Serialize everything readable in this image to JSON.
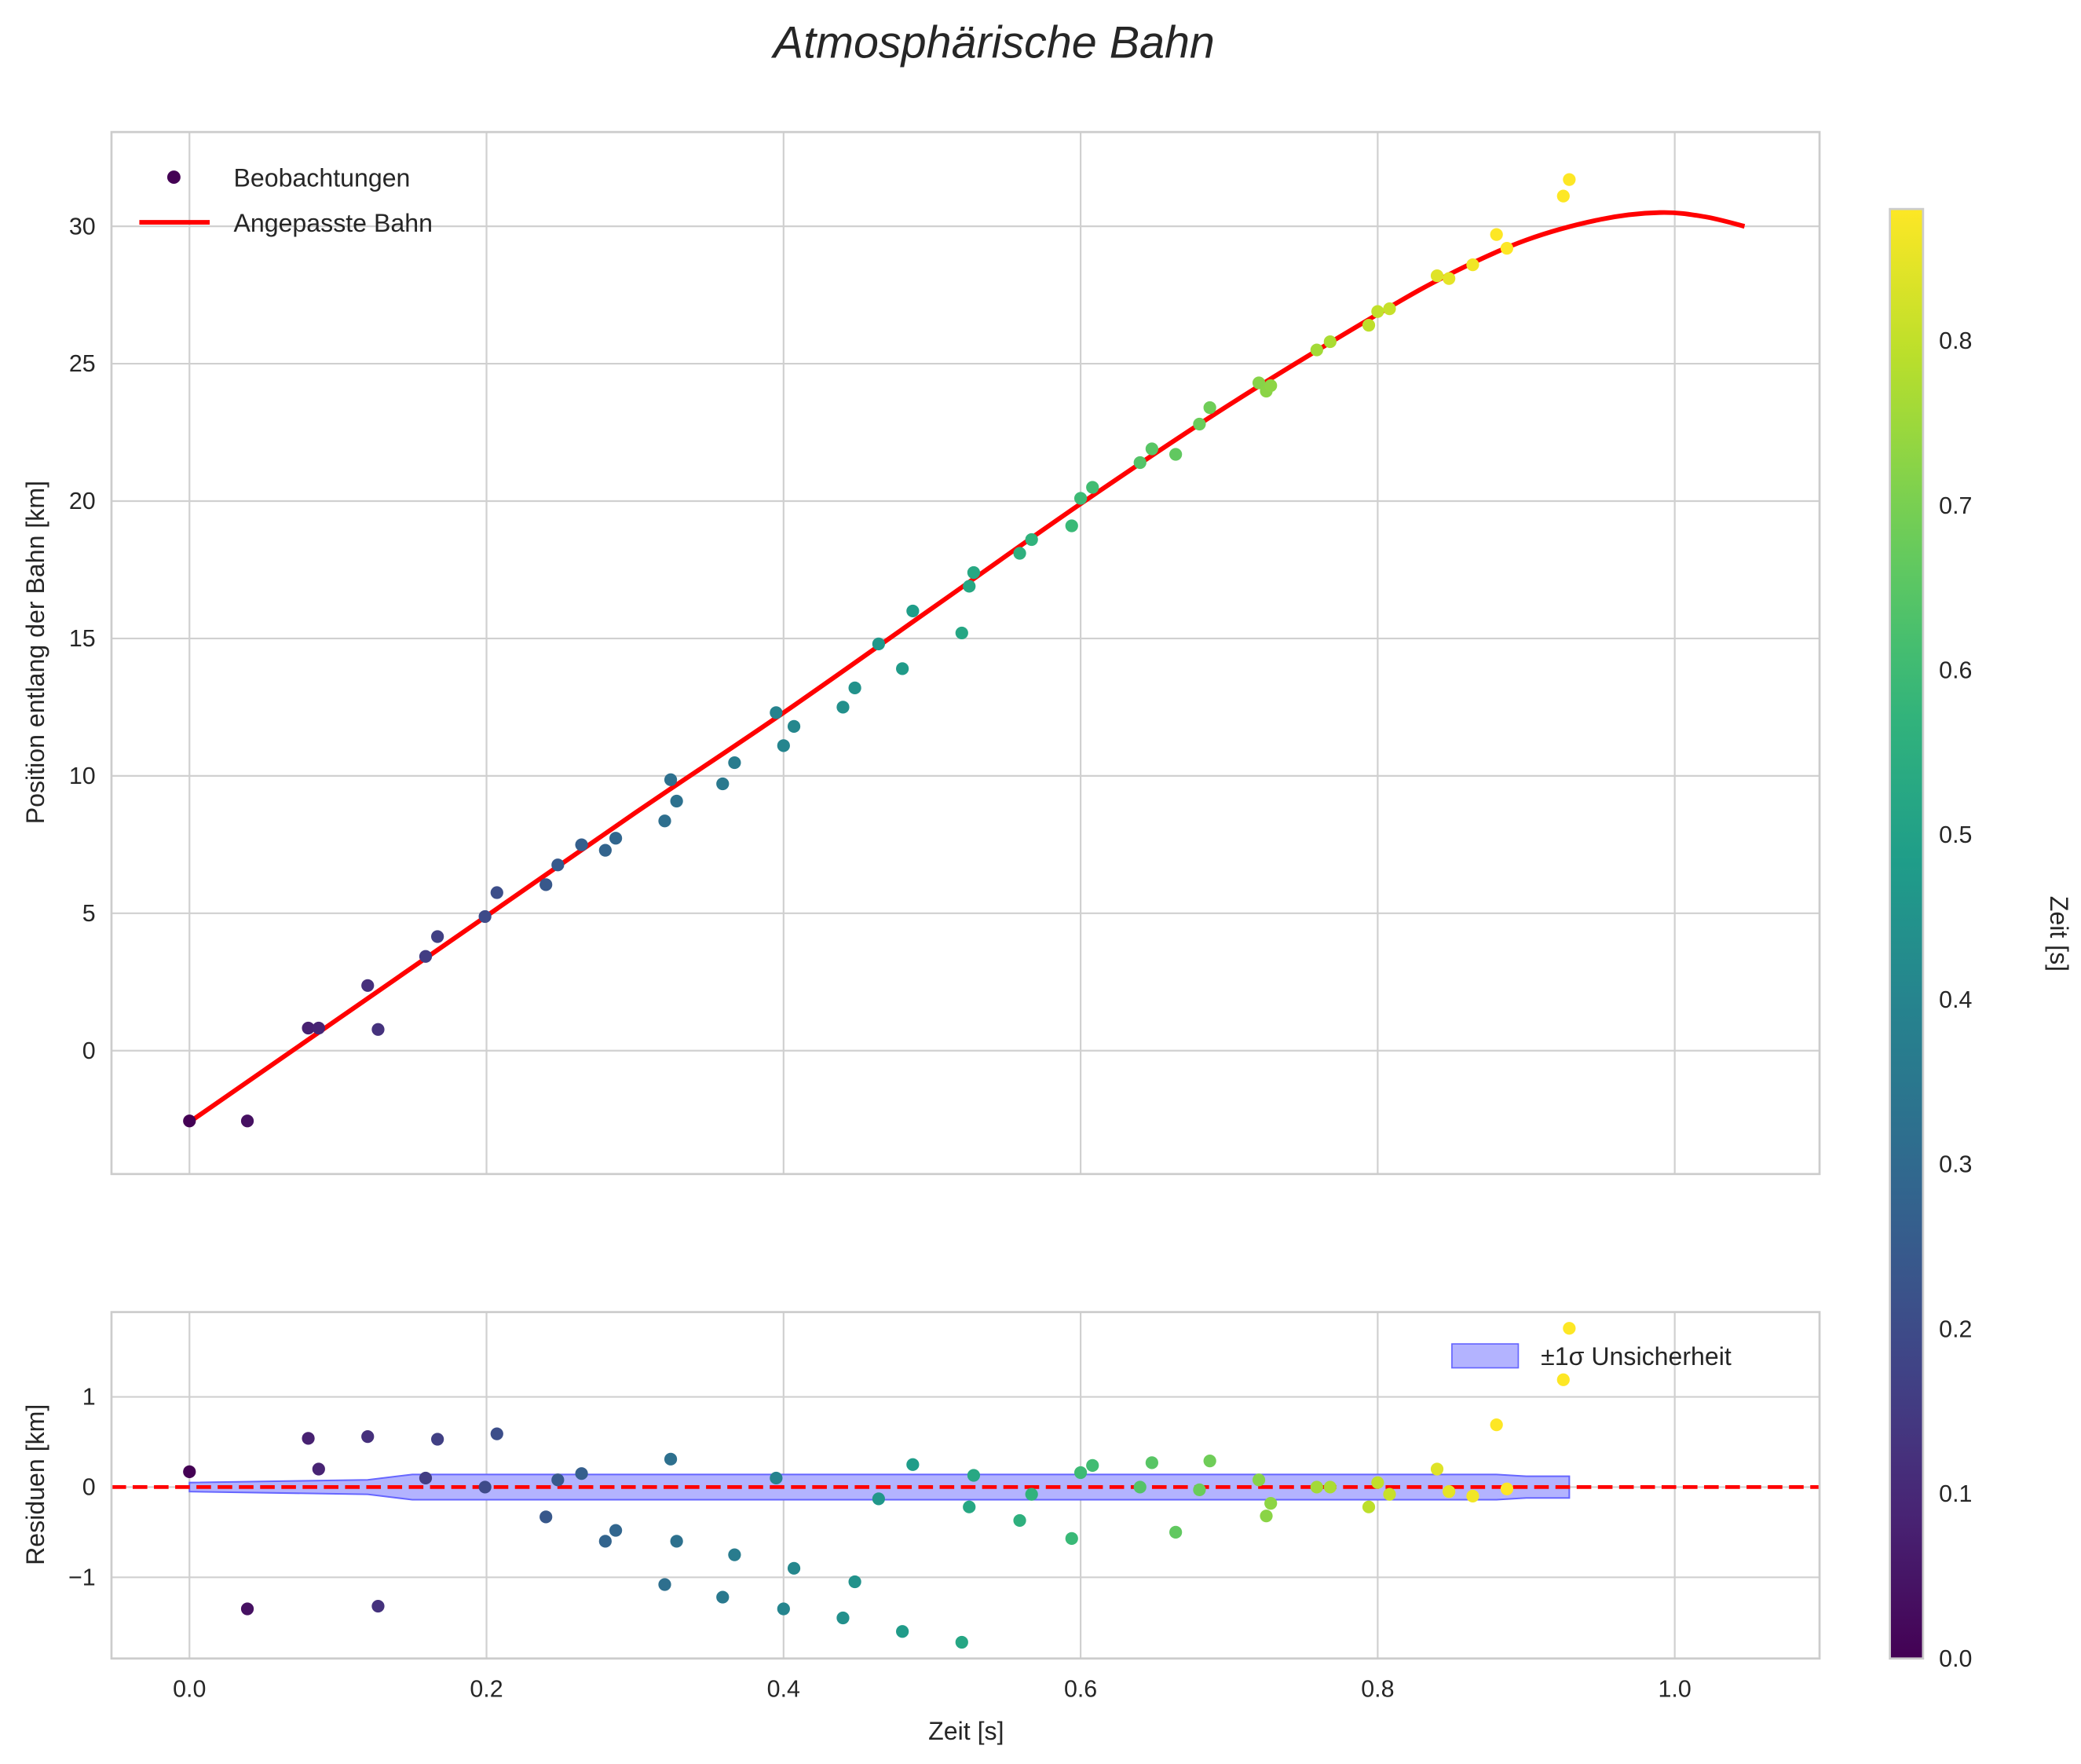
{
  "chart_data": {
    "type": "scatter",
    "title": "Atmosphärische Bahn",
    "top": {
      "ylabel": "Position entlang der Bahn [km]",
      "xlim": [
        -0.0525,
        1.0975
      ],
      "ylim": [
        -4.49,
        33.43
      ],
      "yticks": [
        0,
        5,
        10,
        15,
        20,
        25,
        30
      ],
      "legend": {
        "placement": "top-left",
        "scatter_label": "Beobachtungen",
        "line_label": "Angepasste Bahn"
      },
      "t": [
        0,
        0.039,
        0.08,
        0.087,
        0.12,
        0.127,
        0.159,
        0.167,
        0.199,
        0.207,
        0.24,
        0.248,
        0.264,
        0.28,
        0.287,
        0.32,
        0.324,
        0.328,
        0.359,
        0.367,
        0.395,
        0.4,
        0.407,
        0.44,
        0.448,
        0.464,
        0.48,
        0.487,
        0.52,
        0.525,
        0.528,
        0.559,
        0.567,
        0.594,
        0.6,
        0.608,
        0.64,
        0.648,
        0.664,
        0.68,
        0.687,
        0.72,
        0.725,
        0.728,
        0.759,
        0.768,
        0.794,
        0.8,
        0.808,
        0.84,
        0.848,
        0.864,
        0.88,
        0.887,
        0.925,
        0.929
      ],
      "position": [
        -2.56,
        -2.56,
        0.82,
        0.82,
        2.37,
        0.77,
        3.43,
        4.15,
        4.88,
        5.75,
        6.04,
        6.76,
        7.49,
        7.29,
        7.73,
        8.36,
        9.86,
        9.08,
        9.71,
        10.48,
        12.3,
        11.1,
        11.8,
        12.5,
        13.2,
        14.8,
        13.9,
        16.0,
        15.2,
        16.9,
        17.4,
        18.1,
        18.6,
        19.1,
        20.1,
        20.5,
        21.4,
        21.9,
        21.7,
        22.8,
        23.4,
        24.3,
        24.0,
        24.2,
        25.5,
        25.8,
        26.4,
        26.9,
        27.0,
        28.2,
        28.1,
        28.6,
        29.7,
        29.2,
        31.1,
        31.7
      ],
      "fit_t": [
        0,
        0.1,
        0.2,
        0.3,
        0.4,
        0.5,
        0.6,
        0.7,
        0.8,
        0.85,
        0.9,
        0.95,
        0.99,
        1.02,
        1.047
      ],
      "fit_y": [
        -2.6,
        1.15,
        4.9,
        8.65,
        12.3,
        16.1,
        19.9,
        23.5,
        26.8,
        28.3,
        29.5,
        30.25,
        30.5,
        30.35,
        30.0
      ]
    },
    "bottom": {
      "ylabel": "Residuen [km]",
      "xlabel": "Zeit [s]",
      "ylim": [
        -1.9,
        1.94
      ],
      "yticks": [
        -1,
        0,
        1
      ],
      "xticks": [
        0.0,
        0.2,
        0.4,
        0.6,
        0.8,
        1.0
      ],
      "xtick_labels": [
        "0.0",
        "0.2",
        "0.4",
        "0.6",
        "0.8",
        "1.0"
      ],
      "legend": {
        "placement": "top-right",
        "band_label": "±1σ Unsicherheit"
      },
      "residuals": [
        0.17,
        -1.35,
        0.54,
        0.2,
        0.56,
        -1.32,
        0.1,
        0.53,
        0.0,
        0.59,
        -0.33,
        0.08,
        0.15,
        -0.6,
        -0.48,
        -1.08,
        0.31,
        -0.6,
        -1.22,
        -0.75,
        0.1,
        -1.35,
        -0.9,
        -1.45,
        -1.05,
        -0.13,
        -1.6,
        0.25,
        -1.72,
        -0.22,
        0.13,
        -0.37,
        -0.08,
        -0.57,
        0.16,
        0.24,
        0.0,
        0.27,
        -0.5,
        -0.03,
        0.29,
        0.08,
        -0.32,
        -0.18,
        0.0,
        0.0,
        -0.22,
        0.05,
        -0.08,
        0.2,
        -0.05,
        -0.1,
        0.69,
        -0.02,
        1.19,
        1.76
      ],
      "band_t": [
        0,
        0.12,
        0.15,
        0.88,
        0.9,
        0.929
      ],
      "band_sigma": [
        0.05,
        0.08,
        0.14,
        0.14,
        0.12,
        0.12
      ]
    },
    "colorbar": {
      "label": "Zeit [s]",
      "range": [
        0,
        0.88
      ],
      "ticks": [
        0.0,
        0.1,
        0.2,
        0.3,
        0.4,
        0.5,
        0.6,
        0.7,
        0.8
      ],
      "tick_labels": [
        "0.0",
        "0.1",
        "0.2",
        "0.3",
        "0.4",
        "0.5",
        "0.6",
        "0.7",
        "0.8"
      ],
      "cmap": "viridis"
    },
    "colors": {
      "fit": "#ff0000",
      "band": "#b3b3ff",
      "band_edge": "#6666ff",
      "zero_line": "#ff0000",
      "grid": "#d0d0d0"
    }
  }
}
